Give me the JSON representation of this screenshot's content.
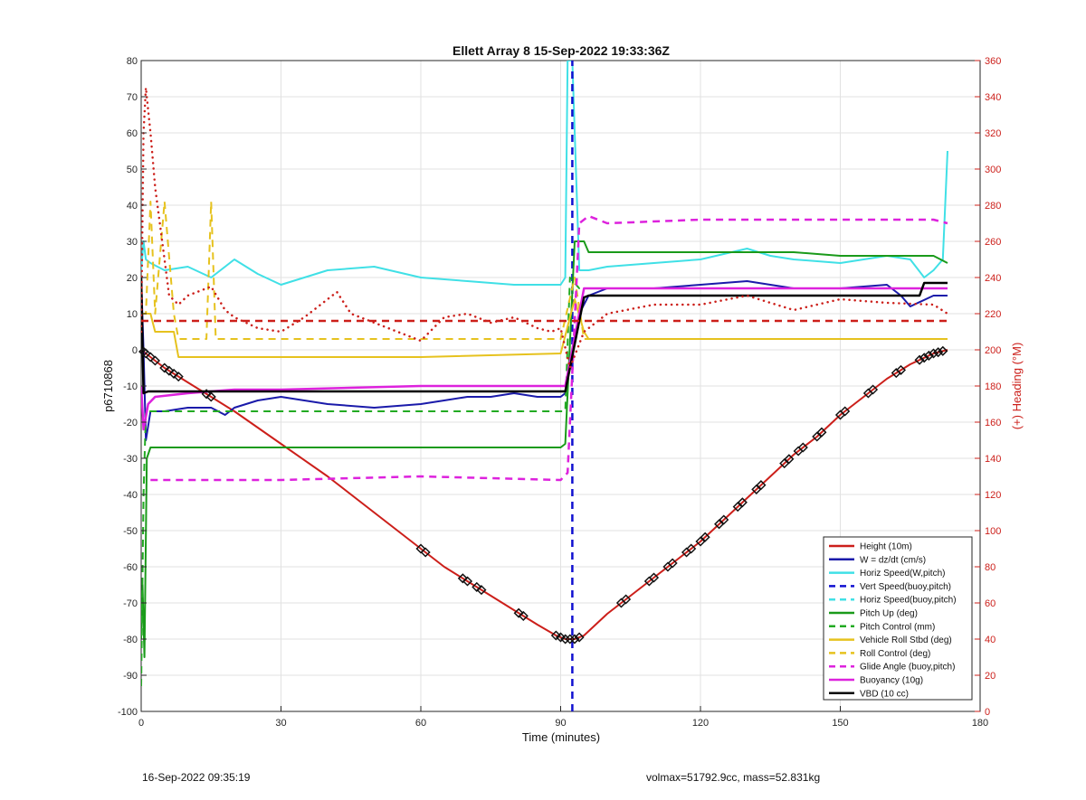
{
  "footer": {
    "timestamp": "16-Sep-2022 09:35:19",
    "summary": "volmax=51792.9cc, mass=52.831kg"
  },
  "colors": {
    "height": "#cc1f1a",
    "w": "#1a1aaa",
    "horiz_w": "#40e0e6",
    "vert_buoy": "#1010d0",
    "horiz_buoy": "#40e0e6",
    "pitch_up": "#1a9a1a",
    "pitch_ctrl": "#22aa22",
    "roll": "#e6c21e",
    "roll_ctrl": "#e6c21e",
    "glide": "#dd22dd",
    "buoyancy": "#dd22dd",
    "vbd": "#000000",
    "heading": "#cc1f1a"
  },
  "chart_data": {
    "type": "line",
    "title": "Ellett Array 8 15-Sep-2022 19:33:36Z",
    "xlabel": "Time (minutes)",
    "ylabel": "p6710868",
    "y2label": "(+) Heading (°M)",
    "xlim": [
      0,
      180
    ],
    "ylim": [
      -100,
      80
    ],
    "y2lim": [
      0,
      360
    ],
    "xticks": [
      0,
      30,
      60,
      90,
      120,
      150,
      180
    ],
    "yticks": [
      -100,
      -90,
      -80,
      -70,
      -60,
      -50,
      -40,
      -30,
      -20,
      -10,
      0,
      10,
      20,
      30,
      40,
      50,
      60,
      70,
      80
    ],
    "y2ticks": [
      0,
      20,
      40,
      60,
      80,
      100,
      120,
      140,
      160,
      180,
      200,
      220,
      240,
      260,
      280,
      300,
      320,
      340,
      360
    ],
    "grid": true,
    "legend_position": "bottom-right",
    "legend": [
      {
        "label": "Height (10m)",
        "color": "#cc1f1a",
        "style": "solid"
      },
      {
        "label": "W = dz/dt (cm/s)",
        "color": "#1a1aaa",
        "style": "solid"
      },
      {
        "label": "Horiz Speed(W,pitch)",
        "color": "#40e0e6",
        "style": "solid"
      },
      {
        "label": "Vert Speed(buoy,pitch)",
        "color": "#1010d0",
        "style": "dashed"
      },
      {
        "label": "Horiz Speed(buoy,pitch)",
        "color": "#40e0e6",
        "style": "dashed"
      },
      {
        "label": "Pitch Up (deg)",
        "color": "#1a9a1a",
        "style": "solid"
      },
      {
        "label": "Pitch Control (mm)",
        "color": "#22aa22",
        "style": "dashed"
      },
      {
        "label": "Vehicle Roll Stbd (deg)",
        "color": "#e6c21e",
        "style": "solid"
      },
      {
        "label": "Roll Control (deg)",
        "color": "#e6c21e",
        "style": "dashed"
      },
      {
        "label": "Glide Angle (buoy,pitch)",
        "color": "#dd22dd",
        "style": "dashed"
      },
      {
        "label": "Buoyancy (10g)",
        "color": "#dd22dd",
        "style": "solid"
      },
      {
        "label": "VBD (10 cc)",
        "color": "#000000",
        "style": "solid"
      }
    ],
    "series": [
      {
        "key": "height",
        "axis": "left",
        "style": "solid",
        "width": 2,
        "x": [
          0,
          1,
          3,
          5,
          10,
          15,
          20,
          30,
          40,
          50,
          60,
          65,
          70,
          75,
          80,
          85,
          89,
          91,
          93,
          95,
          100,
          105,
          110,
          115,
          120,
          125,
          130,
          135,
          140,
          145,
          150,
          155,
          160,
          165,
          170,
          173
        ],
        "y": [
          0,
          -1,
          -3,
          -5,
          -9,
          -13,
          -17,
          -26,
          -35,
          -45,
          -55,
          -60,
          -64,
          -68,
          -72,
          -76,
          -79,
          -80,
          -80,
          -79,
          -73,
          -68,
          -63,
          -58,
          -53,
          -47,
          -41,
          -35,
          -29,
          -24,
          -18,
          -13,
          -8,
          -4,
          -1,
          0
        ]
      },
      {
        "key": "w",
        "axis": "left",
        "style": "solid",
        "width": 2,
        "x": [
          0,
          0.5,
          1,
          2,
          5,
          10,
          15,
          18,
          20,
          25,
          30,
          40,
          50,
          60,
          65,
          70,
          75,
          80,
          85,
          90,
          91,
          94,
          96,
          100,
          110,
          120,
          130,
          140,
          150,
          160,
          163,
          165,
          170,
          173
        ],
        "y": [
          20,
          0,
          -25,
          -17,
          -17,
          -16,
          -16,
          -18,
          -16,
          -14,
          -13,
          -15,
          -16,
          -15,
          -14,
          -13,
          -13,
          -12,
          -13,
          -13,
          -12,
          10,
          15,
          17,
          17,
          18,
          19,
          17,
          17,
          18,
          15,
          12,
          15,
          15
        ]
      },
      {
        "key": "horiz_w",
        "axis": "left",
        "style": "solid",
        "width": 2,
        "x": [
          0,
          0.5,
          1,
          2,
          5,
          10,
          15,
          20,
          25,
          30,
          35,
          40,
          50,
          60,
          70,
          80,
          85,
          88,
          90,
          91,
          91.5,
          92.5,
          94,
          96,
          100,
          110,
          120,
          130,
          135,
          140,
          150,
          160,
          165,
          168,
          170,
          172,
          173
        ],
        "y": [
          22,
          30,
          25,
          24,
          22,
          23,
          20,
          25,
          21,
          18,
          20,
          22,
          23,
          20,
          19,
          18,
          18,
          18,
          18,
          20,
          80,
          80,
          22,
          22,
          23,
          24,
          25,
          28,
          26,
          25,
          24,
          26,
          25,
          20,
          22,
          25,
          55
        ]
      },
      {
        "key": "vert_buoy",
        "axis": "left",
        "style": "dashed",
        "width": 2.5,
        "x": [
          92.5,
          92.5
        ],
        "y": [
          -100,
          80
        ]
      },
      {
        "key": "pitch_up",
        "axis": "left",
        "style": "solid",
        "width": 2,
        "x": [
          0,
          0.3,
          0.7,
          1.2,
          2,
          5,
          20,
          40,
          60,
          90,
          91,
          93,
          95,
          96,
          100,
          110,
          120,
          130,
          140,
          150,
          160,
          170,
          173
        ],
        "y": [
          -80,
          -65,
          -85,
          -30,
          -27,
          -27,
          -27,
          -27,
          -27,
          -27,
          -26,
          30,
          30,
          27,
          27,
          27,
          27,
          27,
          27,
          26,
          26,
          26,
          24
        ]
      },
      {
        "key": "pitch_ctrl",
        "axis": "left",
        "style": "dashed",
        "width": 2,
        "x": [
          0,
          0.5,
          1,
          2,
          91,
          92,
          94,
          173
        ],
        "y": [
          -93,
          -40,
          -17,
          -17,
          -17,
          20,
          17,
          17
        ]
      },
      {
        "key": "roll",
        "axis": "left",
        "style": "solid",
        "width": 2,
        "x": [
          0,
          1,
          2,
          3,
          7,
          8,
          14,
          15,
          60,
          90,
          93,
          95,
          96,
          173
        ],
        "y": [
          10,
          10,
          10,
          5,
          5,
          -2,
          -2,
          -2,
          -2,
          -1,
          14,
          5,
          3,
          3
        ]
      },
      {
        "key": "roll_ctrl",
        "axis": "left",
        "style": "dashed",
        "width": 2,
        "x": [
          0,
          1,
          2,
          3,
          5,
          7,
          8,
          14,
          15,
          16,
          60,
          90,
          93,
          95,
          96,
          173
        ],
        "y": [
          10,
          10,
          41,
          10,
          41,
          10,
          3,
          3,
          41,
          3,
          3,
          3,
          20,
          3,
          3,
          3
        ]
      },
      {
        "key": "glide",
        "axis": "left",
        "style": "dashed",
        "width": 2.5,
        "x": [
          2,
          30,
          60,
          90,
          91.5,
          94,
          96,
          100,
          120,
          140,
          160,
          170,
          173
        ],
        "y": [
          -36,
          -36,
          -35,
          -36,
          -34,
          35,
          37,
          35,
          36,
          36,
          36,
          36,
          35
        ]
      },
      {
        "key": "buoyancy",
        "axis": "left",
        "style": "solid",
        "width": 2.5,
        "x": [
          0,
          0.5,
          1.5,
          3,
          10,
          20,
          30,
          60,
          90,
          91,
          95,
          96,
          173
        ],
        "y": [
          -10,
          -22,
          -15,
          -13,
          -12,
          -11,
          -11,
          -10,
          -10,
          -10,
          17,
          17,
          17
        ]
      },
      {
        "key": "vbd",
        "axis": "left",
        "style": "solid",
        "width": 2.5,
        "x": [
          0,
          0.5,
          1.5,
          2,
          91,
          95,
          96,
          160,
          165,
          167,
          168,
          173
        ],
        "y": [
          20,
          -12,
          -11.5,
          -11.5,
          -11.5,
          14.5,
          15,
          15,
          15,
          15,
          18.5,
          18.5
        ]
      },
      {
        "key": "heading",
        "axis": "right",
        "style": "dotted",
        "width": 2.5,
        "x": [
          0,
          0.5,
          1,
          2,
          3,
          4,
          5,
          6,
          8,
          10,
          15,
          18,
          20,
          25,
          30,
          35,
          42,
          45,
          50,
          55,
          60,
          65,
          70,
          75,
          80,
          85,
          88,
          90,
          92,
          95,
          100,
          110,
          120,
          130,
          140,
          150,
          160,
          170,
          173
        ],
        "y": [
          210,
          320,
          345,
          320,
          290,
          270,
          250,
          230,
          225,
          230,
          235,
          222,
          218,
          212,
          210,
          218,
          232,
          220,
          215,
          210,
          205,
          218,
          220,
          215,
          218,
          212,
          210,
          212,
          190,
          210,
          220,
          225,
          225,
          230,
          222,
          228,
          226,
          225,
          220
        ]
      },
      {
        "key": "heading_mean",
        "axis": "right",
        "style": "dashed",
        "width": 2.5,
        "x": [
          0,
          173
        ],
        "y": [
          216,
          216
        ]
      }
    ],
    "markers": {
      "style": "diamond",
      "x": [
        0.5,
        1,
        2,
        3,
        5,
        6,
        7,
        8,
        14,
        15,
        60,
        61,
        69,
        70,
        72,
        73,
        81,
        82,
        89,
        90,
        91,
        92,
        93,
        94,
        103,
        104,
        109,
        110,
        113,
        114,
        117,
        118,
        120,
        121,
        124,
        125,
        128,
        129,
        132,
        133,
        138,
        139,
        141,
        142,
        145,
        146,
        150,
        151,
        156,
        157,
        162,
        163,
        167,
        168,
        169,
        170,
        171,
        172
      ]
    }
  }
}
